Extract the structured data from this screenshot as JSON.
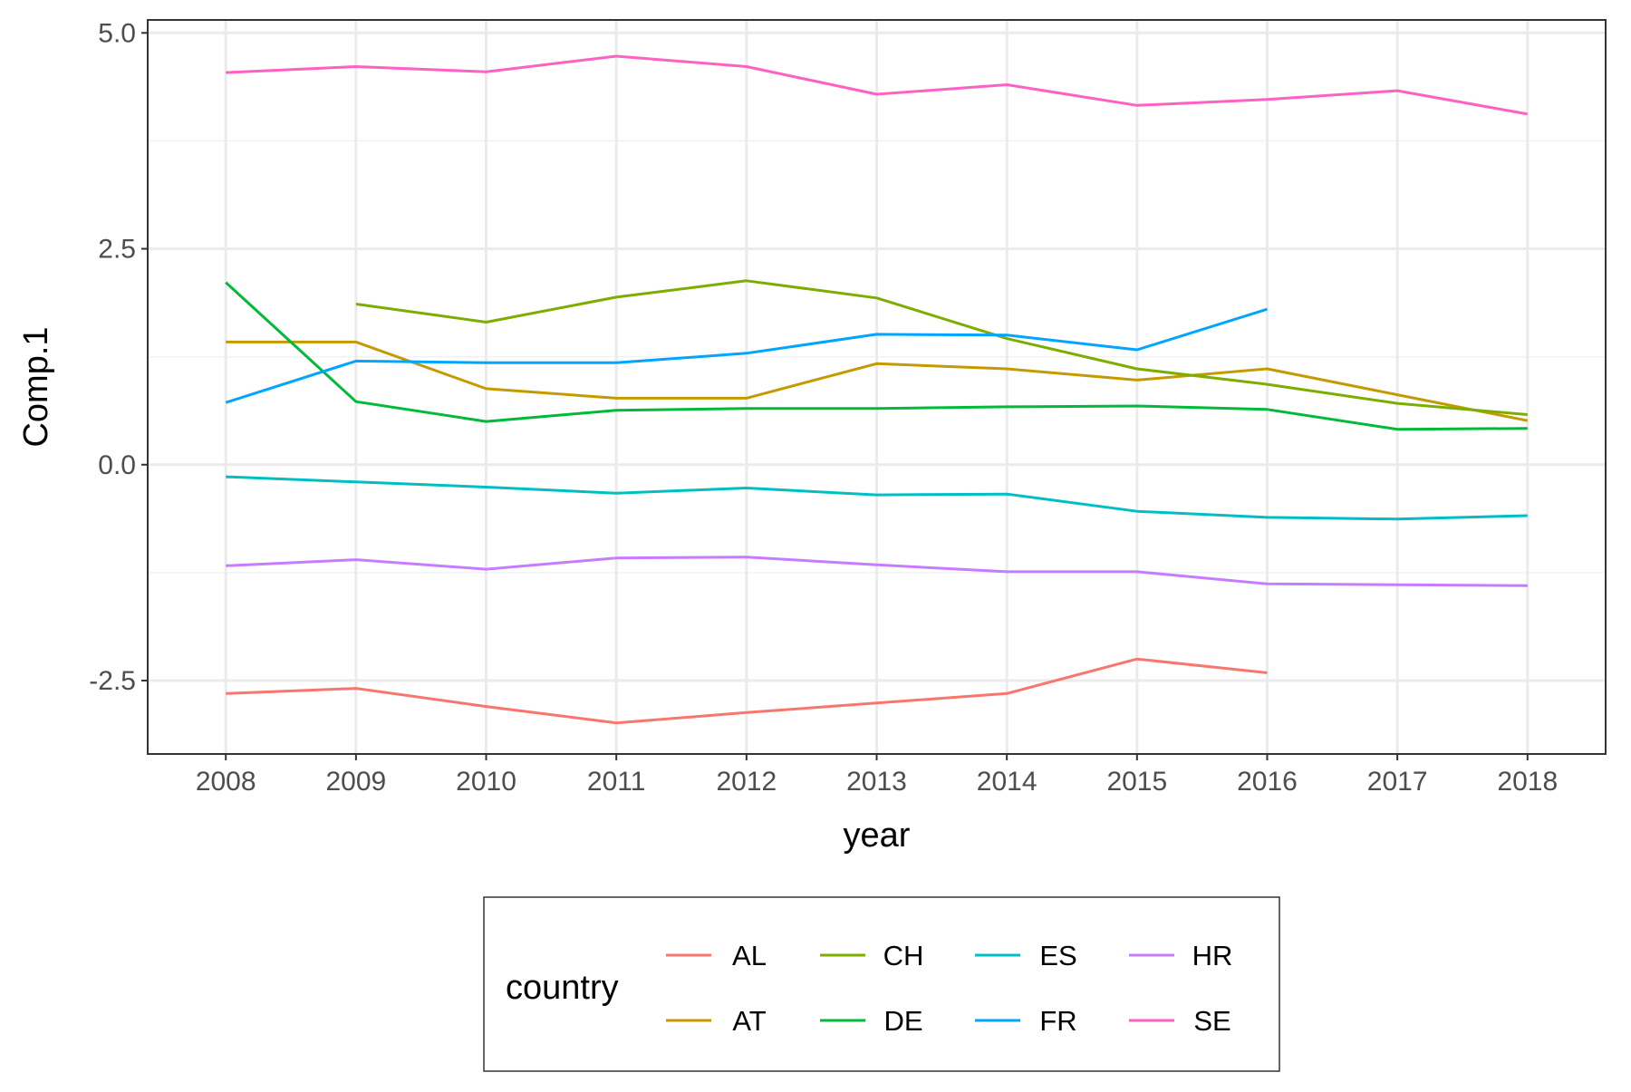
{
  "chart_data": {
    "type": "line",
    "title": "",
    "xlabel": "year",
    "ylabel": "Comp.1",
    "x": [
      2008,
      2009,
      2010,
      2011,
      2012,
      2013,
      2014,
      2015,
      2016,
      2017,
      2018
    ],
    "x_tick_labels": [
      "2008",
      "2009",
      "2010",
      "2011",
      "2012",
      "2013",
      "2014",
      "2015",
      "2016",
      "2017",
      "2018"
    ],
    "y_ticks": [
      -2.5,
      0.0,
      2.5,
      5.0
    ],
    "y_tick_labels": [
      "-2.5",
      "0.0",
      "2.5",
      "5.0"
    ],
    "xlim": [
      2007.4,
      2018.6
    ],
    "ylim": [
      -3.35,
      5.15
    ],
    "grid": true,
    "legend": {
      "title": "country",
      "placement": "bottom"
    },
    "series": [
      {
        "name": "AL",
        "color": "#F8766D",
        "values": [
          -2.65,
          -2.59,
          -2.8,
          -2.99,
          -2.87,
          -2.76,
          -2.65,
          -2.25,
          -2.41,
          null,
          null
        ]
      },
      {
        "name": "AT",
        "color": "#C49A00",
        "values": [
          1.42,
          1.42,
          0.88,
          0.77,
          0.77,
          1.17,
          1.11,
          0.98,
          1.11,
          0.81,
          0.51
        ]
      },
      {
        "name": "CH",
        "color": "#7CAE00",
        "values": [
          null,
          1.86,
          1.65,
          1.94,
          2.13,
          1.93,
          1.46,
          1.11,
          0.93,
          0.71,
          0.58
        ]
      },
      {
        "name": "DE",
        "color": "#00BA38",
        "values": [
          2.11,
          0.73,
          0.5,
          0.63,
          0.65,
          0.65,
          0.67,
          0.68,
          0.64,
          0.41,
          0.42
        ]
      },
      {
        "name": "ES",
        "color": "#00BFC4",
        "values": [
          -0.14,
          -0.2,
          -0.26,
          -0.33,
          -0.27,
          -0.35,
          -0.34,
          -0.54,
          -0.61,
          -0.63,
          -0.59
        ]
      },
      {
        "name": "FR",
        "color": "#00A5FF",
        "values": [
          0.72,
          1.2,
          1.18,
          1.18,
          1.29,
          1.51,
          1.5,
          1.33,
          1.8,
          null,
          null
        ]
      },
      {
        "name": "HR",
        "color": "#C77CFF",
        "values": [
          -1.17,
          -1.1,
          -1.21,
          -1.08,
          -1.07,
          -1.16,
          -1.24,
          -1.24,
          -1.38,
          -1.39,
          -1.4
        ]
      },
      {
        "name": "SE",
        "color": "#FF61C3",
        "values": [
          4.54,
          4.61,
          4.55,
          4.73,
          4.61,
          4.29,
          4.4,
          4.16,
          4.23,
          4.33,
          4.06
        ]
      }
    ]
  }
}
